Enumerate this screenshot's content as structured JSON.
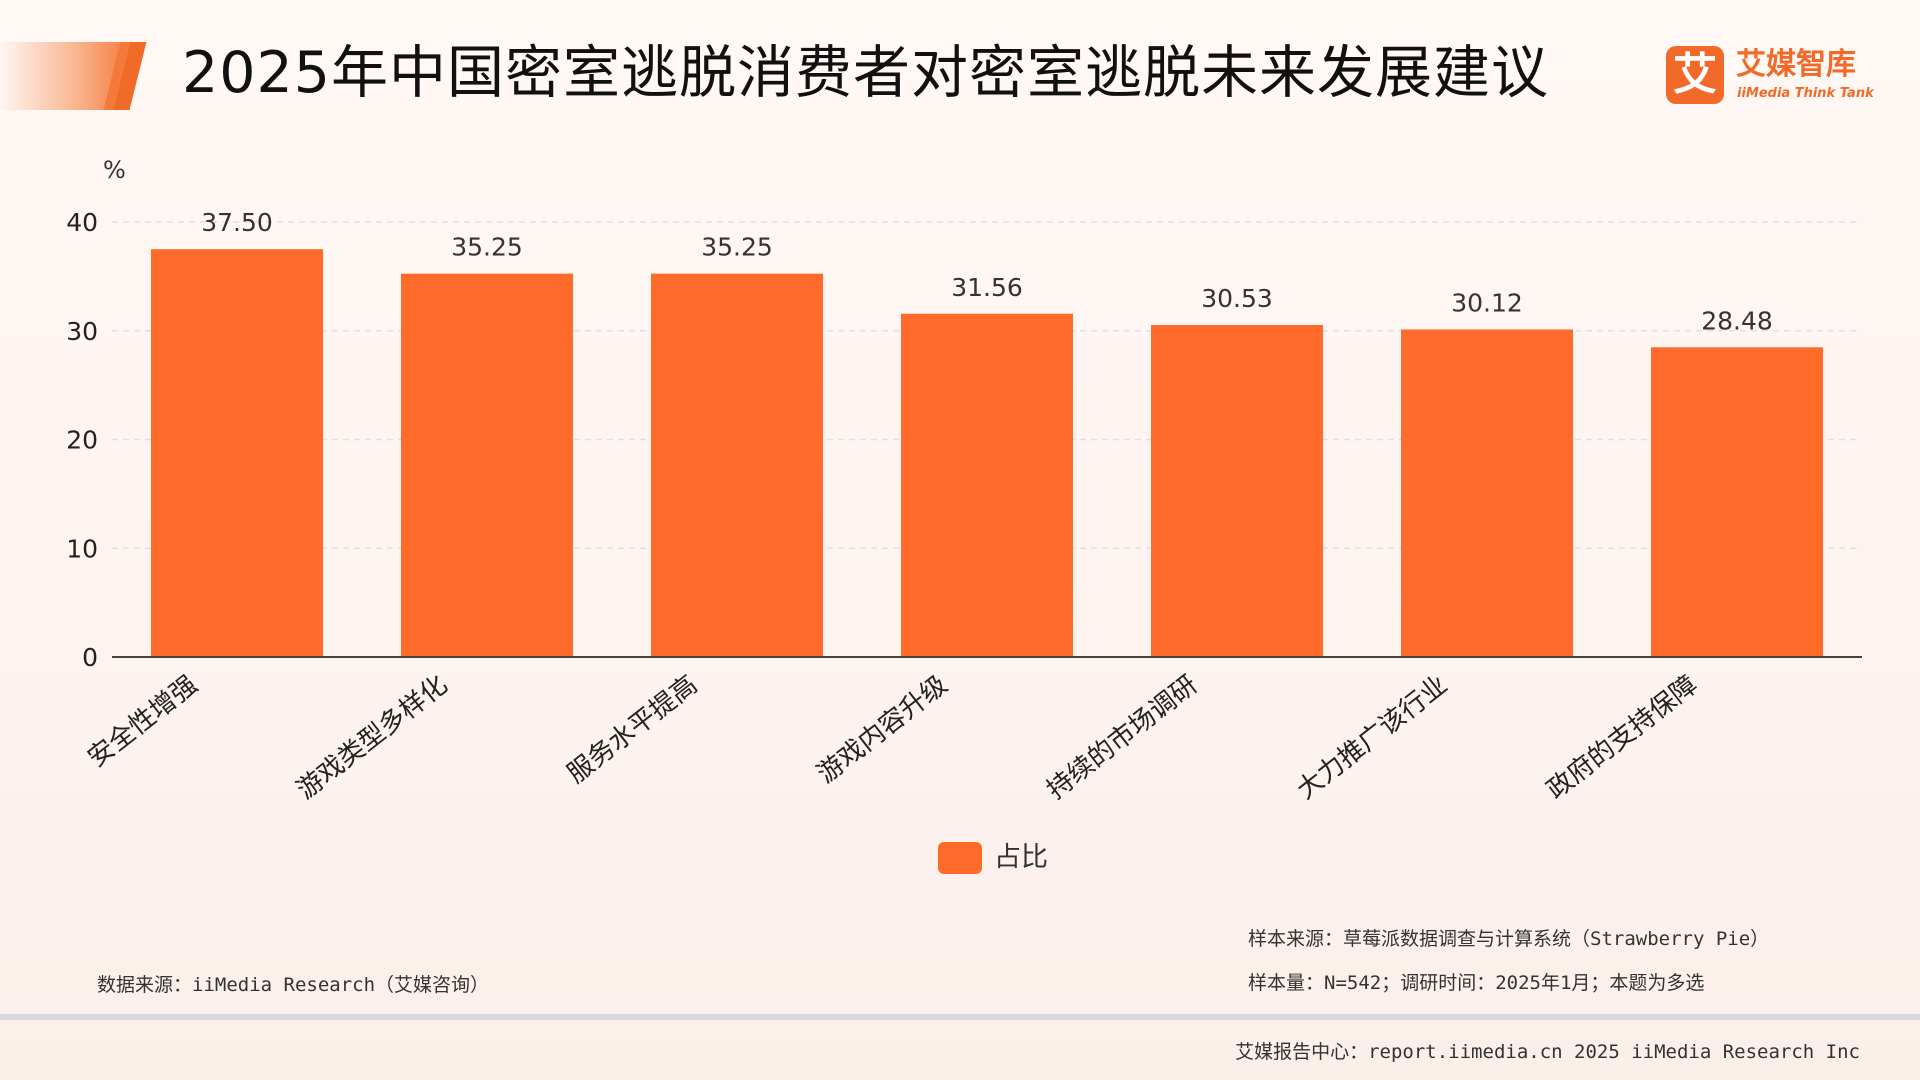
{
  "header": {
    "title": "2025年中国密室逃脱消费者对密室逃脱未来发展建议"
  },
  "logo": {
    "mark": "艾",
    "cn": "艾媒智库",
    "en": "iiMedia Think Tank",
    "icon": "iimedia-logo-icon"
  },
  "colors": {
    "bar": "#ff6b2b",
    "accent": "#f26a2a",
    "grid": "#dde0f0",
    "axis": "#444444"
  },
  "chart_data": {
    "type": "bar",
    "title": "2025年中国密室逃脱消费者对密室逃脱未来发展建议",
    "ylabel": "%",
    "xlabel": "",
    "ylim": [
      0,
      40
    ],
    "yticks": [
      0,
      10,
      20,
      30,
      40
    ],
    "grid": true,
    "categories": [
      "安全性增强",
      "游戏类型多样化",
      "服务水平提高",
      "游戏内容升级",
      "持续的市场调研",
      "大力推广该行业",
      "政府的支持保障"
    ],
    "series": [
      {
        "name": "占比",
        "values": [
          37.5,
          35.25,
          35.25,
          31.56,
          30.53,
          30.12,
          28.48
        ],
        "labels": [
          "37.50",
          "35.25",
          "35.25",
          "31.56",
          "30.53",
          "30.12",
          "28.48"
        ]
      }
    ],
    "legend": "bottom-center"
  },
  "legend": {
    "label": "占比"
  },
  "notes": {
    "sample_source": "样本来源：草莓派数据调查与计算系统（Strawberry Pie）",
    "sample_size": "样本量：N=542；调研时间：2025年1月；本题为多选",
    "data_source": "数据来源：iiMedia Research（艾媒咨询）"
  },
  "footer": {
    "text": "艾媒报告中心：report.iimedia.cn  2025 iiMedia Research Inc"
  }
}
